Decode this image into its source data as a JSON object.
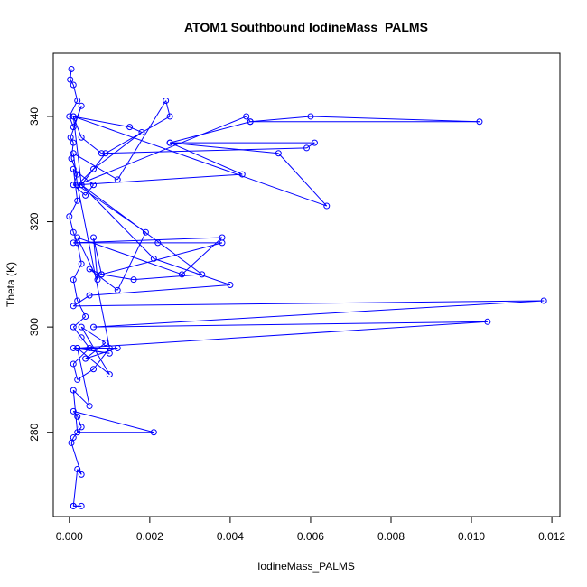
{
  "chart_data": {
    "type": "line",
    "title": "ATOM1 Southbound IodineMass_PALMS",
    "xlabel": "IodineMass_PALMS",
    "ylabel": "Theta (K)",
    "xlim": [
      -0.0004,
      0.0122
    ],
    "ylim": [
      264,
      352
    ],
    "x_ticks": [
      0.0,
      0.002,
      0.004,
      0.006,
      0.008,
      0.01,
      0.012
    ],
    "x_tick_labels": [
      "0.000",
      "0.002",
      "0.004",
      "0.006",
      "0.008",
      "0.010",
      "0.012"
    ],
    "y_ticks": [
      280,
      300,
      320,
      340
    ],
    "y_tick_labels": [
      "280",
      "300",
      "320",
      "340"
    ],
    "grid": false,
    "legend": "none",
    "series_color": "#0000ff",
    "series": [
      {
        "marker": "open-circle",
        "x": [
          5e-05,
          2e-05,
          0.0001,
          0.0002,
          0.0,
          0.0001,
          0.0003,
          3e-05,
          0.0001,
          5e-05,
          0.0002,
          0.0001,
          0.0004,
          0.0006,
          0.0001,
          0.0002,
          0.0,
          0.0001,
          0.0002,
          0.0003,
          0.0001,
          0.0002,
          0.0004,
          0.0001,
          0.0003,
          0.0005,
          0.0001,
          0.0002,
          0.0006,
          0.001,
          0.0002,
          0.0001,
          0.0012,
          0.0024,
          0.0025,
          0.0009,
          0.0003,
          0.0001,
          0.0015,
          0.0018,
          0.0006,
          0.0002,
          0.0044,
          0.0045,
          0.006,
          0.0102,
          0.0045,
          0.0025,
          0.0052,
          0.0064,
          0.0001,
          0.0003,
          0.0008,
          0.0059,
          0.0061,
          0.0025,
          0.0043,
          0.0002,
          0.0019,
          0.0012,
          0.0005,
          0.0008,
          0.0006,
          0.0007,
          0.0002,
          0.0028,
          0.0038,
          0.0001,
          0.0022,
          0.0038,
          0.0008,
          0.0016,
          0.0033,
          0.0003,
          0.0021,
          0.004,
          0.0005,
          0.0001,
          0.0118,
          0.0006,
          0.0104,
          0.0002,
          0.001,
          0.0001,
          0.0012,
          0.0004,
          0.0009,
          0.0003,
          0.001,
          0.0002,
          0.0005,
          0.0001,
          0.0002,
          0.0021,
          0.0001,
          0.0002,
          0.0003,
          0.0001,
          5e-05,
          0.0003,
          0.0002,
          0.0001,
          0.0003,
          0.0001
        ],
        "y": [
          349,
          347,
          346,
          343,
          340,
          338,
          342,
          336,
          335,
          332,
          329,
          327,
          325,
          327,
          330,
          324,
          321,
          318,
          316,
          312,
          309,
          305,
          302,
          300,
          298,
          296,
          293,
          290,
          292,
          296,
          327,
          333,
          328,
          343,
          340,
          333,
          327,
          340,
          338,
          337,
          330,
          327,
          340,
          339,
          340,
          339,
          339,
          335,
          333,
          323,
          340,
          336,
          333,
          334,
          335,
          335,
          329,
          327,
          318,
          307,
          311,
          310,
          317,
          309,
          317,
          310,
          317,
          316,
          316,
          316,
          310,
          309,
          310,
          327,
          313,
          308,
          306,
          304,
          305,
          300,
          301,
          296,
          295,
          296,
          296,
          294,
          297,
          300,
          291,
          296,
          285,
          288,
          280,
          280,
          284,
          283,
          281,
          279,
          278,
          272,
          273,
          266,
          266,
          266
        ]
      }
    ]
  }
}
